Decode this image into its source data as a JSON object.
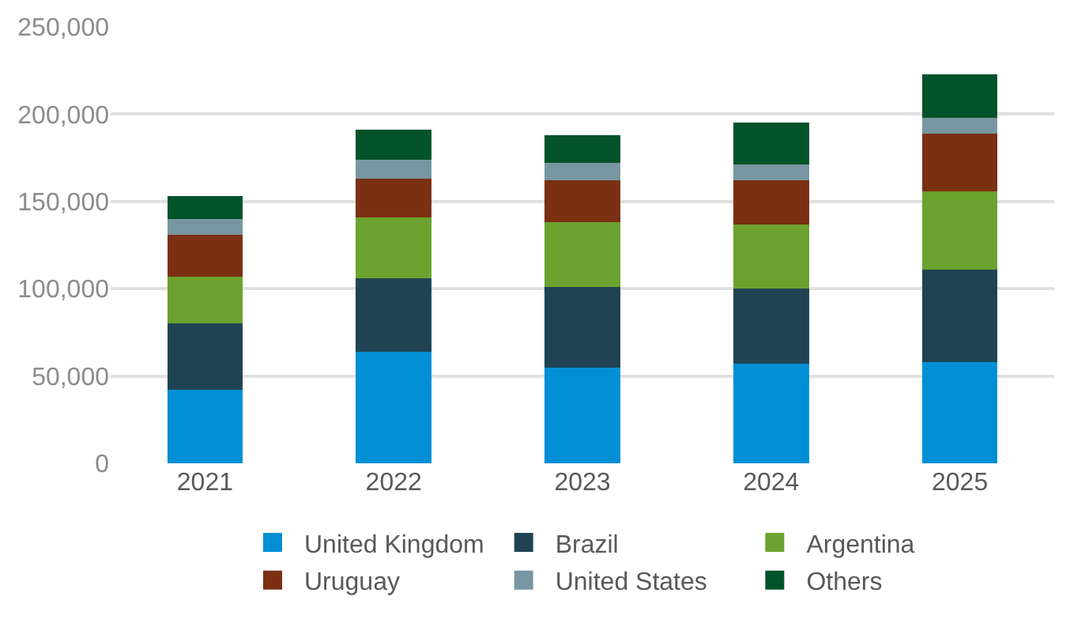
{
  "chart_data": {
    "type": "bar",
    "stacked": true,
    "categories": [
      "2021",
      "2022",
      "2023",
      "2024",
      "2025"
    ],
    "series": [
      {
        "name": "United Kingdom",
        "color": "#008fd5",
        "values": [
          42000,
          64000,
          55000,
          57000,
          58000
        ]
      },
      {
        "name": "Brazil",
        "color": "#1f4353",
        "values": [
          38000,
          42000,
          46000,
          43000,
          53000
        ]
      },
      {
        "name": "Argentina",
        "color": "#6ca22f",
        "values": [
          27000,
          35000,
          37000,
          37000,
          45000
        ]
      },
      {
        "name": "Uruguay",
        "color": "#7b3012",
        "values": [
          24000,
          22000,
          24000,
          25000,
          33000
        ]
      },
      {
        "name": "United States",
        "color": "#7896a2",
        "values": [
          9000,
          11000,
          10000,
          9000,
          9000
        ]
      },
      {
        "name": "Others",
        "color": "#03532a",
        "values": [
          13000,
          17000,
          16000,
          24000,
          25000
        ]
      }
    ],
    "ylim": [
      0,
      250000
    ],
    "yticks": [
      {
        "value": 0,
        "label": "0"
      },
      {
        "value": 50000,
        "label": "50,000"
      },
      {
        "value": 100000,
        "label": "100,000"
      },
      {
        "value": 150000,
        "label": "150,000"
      },
      {
        "value": 200000,
        "label": "200,000"
      },
      {
        "value": 250000,
        "label": "250,000"
      }
    ],
    "grid": "y",
    "legend": "bottom"
  }
}
